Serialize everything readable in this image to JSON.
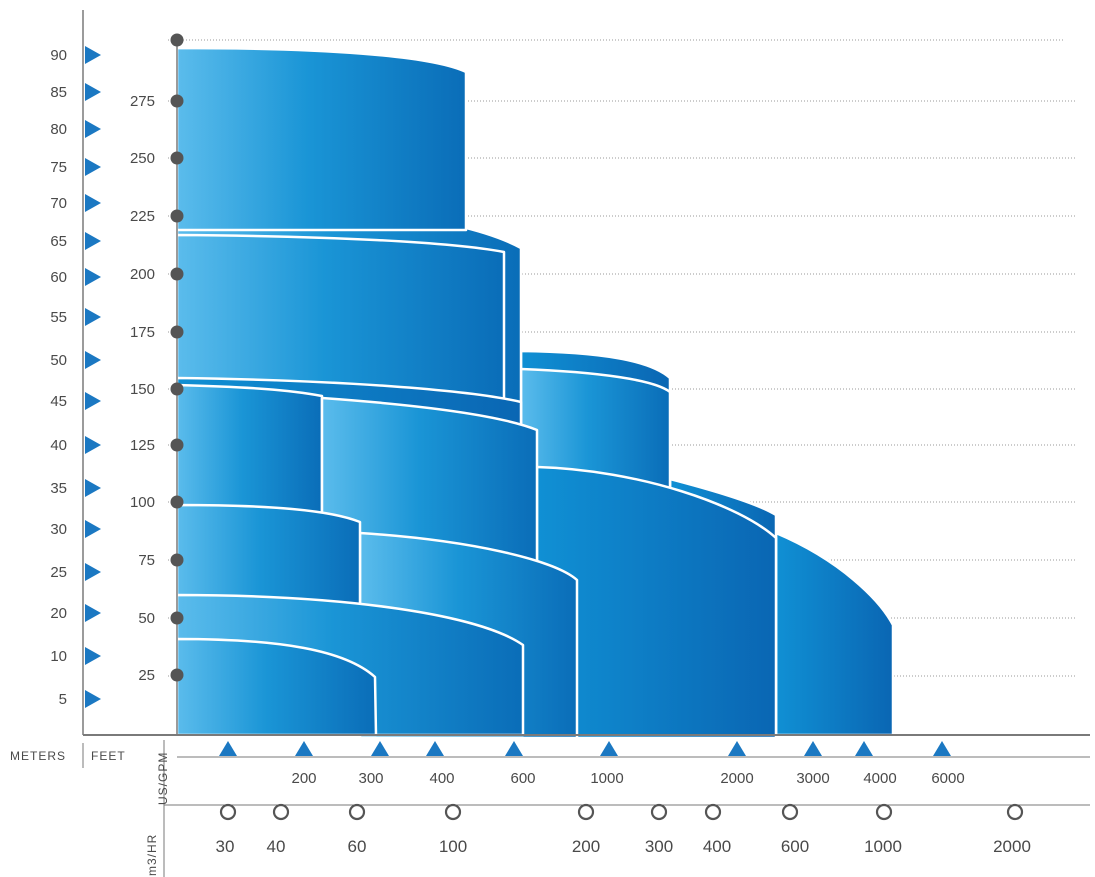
{
  "chart_data": {
    "type": "area",
    "title": "",
    "axes": {
      "meters": {
        "title": "METERS",
        "ticks": [
          "5",
          "10",
          "20",
          "25",
          "30",
          "35",
          "40",
          "45",
          "50",
          "55",
          "60",
          "65",
          "70",
          "75",
          "80",
          "85",
          "90"
        ]
      },
      "feet": {
        "title": "FEET",
        "ticks": [
          "25",
          "50",
          "75",
          "100",
          "125",
          "150",
          "175",
          "200",
          "225",
          "250",
          "275"
        ]
      },
      "us_gpm": {
        "title": "US/GPM",
        "ticks": [
          "200",
          "300",
          "400",
          "600",
          "1000",
          "2000",
          "3000",
          "4000",
          "6000"
        ]
      },
      "m3_hr": {
        "title": "m3/HR",
        "ticks": [
          "30",
          "40",
          "60",
          "100",
          "200",
          "300",
          "400",
          "600",
          "1000",
          "2000"
        ]
      }
    },
    "grid": true,
    "pump_coverage_regions_feet_head": [
      {
        "region": 1,
        "max_head_ft": 293
      },
      {
        "region": 2,
        "max_head_ft": 222
      },
      {
        "region": 3,
        "max_head_ft": 217
      },
      {
        "region": 4,
        "max_head_ft": 153
      },
      {
        "region": 5,
        "max_head_ft": 148
      },
      {
        "region": 6,
        "max_head_ft": 147
      },
      {
        "region": 7,
        "max_head_ft": 125
      },
      {
        "region": 8,
        "max_head_ft": 111
      },
      {
        "region": 9,
        "max_head_ft": 102
      },
      {
        "region": 10,
        "max_head_ft": 94
      },
      {
        "region": 11,
        "max_head_ft": 87
      },
      {
        "region": 12,
        "max_head_ft": 60
      },
      {
        "region": 13,
        "max_head_ft": 42
      }
    ],
    "colors": {
      "fill_light": "#5bbcec",
      "fill_mid": "#1a95d6",
      "fill_dark": "#0a6db8",
      "axis": "#7a7a7a",
      "meter_marker": "#1b78c2",
      "feet_marker": "#555555",
      "gpm_marker": "#1b78c2"
    }
  }
}
